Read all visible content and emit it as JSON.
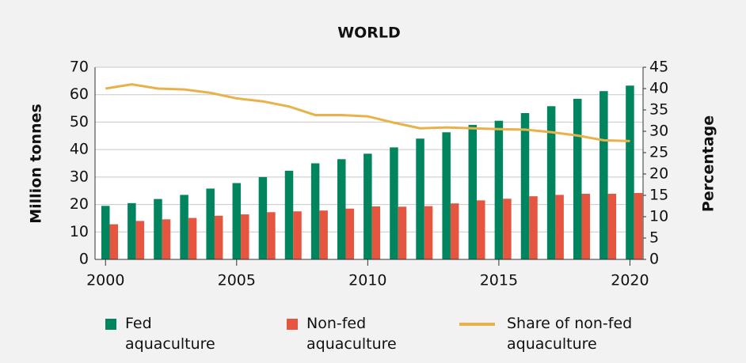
{
  "chart_data": {
    "type": "bar",
    "title": "WORLD",
    "y_label": "Million tonnes",
    "y2_label": "Percentage",
    "x": [
      2000,
      2001,
      2002,
      2003,
      2004,
      2005,
      2006,
      2007,
      2008,
      2009,
      2010,
      2011,
      2012,
      2013,
      2014,
      2015,
      2016,
      2017,
      2018,
      2019,
      2020
    ],
    "xlim": [
      1999.6,
      2020.5
    ],
    "xticks": [
      2000,
      2005,
      2010,
      2015,
      2020
    ],
    "ylim": [
      0,
      70
    ],
    "yticks": [
      0,
      10,
      20,
      30,
      40,
      50,
      60,
      70
    ],
    "y2lim": [
      0,
      45
    ],
    "y2ticks": [
      0,
      5,
      10,
      15,
      20,
      25,
      30,
      35,
      40,
      45
    ],
    "grid": true,
    "legend": "bottom",
    "series": [
      {
        "name": "Fed aquaculture",
        "type": "bar",
        "color": "#00855f",
        "values": [
          19.5,
          20.5,
          22,
          23.5,
          25.8,
          27.8,
          30,
          32.3,
          35,
          36.5,
          38.5,
          40.8,
          44,
          46.3,
          49,
          50.5,
          53.3,
          55.8,
          58.5,
          61.3,
          63.3
        ]
      },
      {
        "name": "Non-fed aquaculture",
        "type": "bar",
        "color": "#e5553f",
        "values": [
          12.8,
          14,
          14.6,
          15.1,
          15.9,
          16.4,
          17.2,
          17.5,
          17.8,
          18.5,
          19.3,
          19.2,
          19.4,
          20.4,
          21.5,
          22.1,
          23,
          23.5,
          23.9,
          23.9,
          24.2
        ]
      },
      {
        "name": "Share of non-fed aquaculture",
        "type": "line",
        "axis": "y2",
        "color": "#e8b24a",
        "values": [
          40,
          41,
          40,
          39.8,
          39,
          37.7,
          37,
          35.8,
          33.8,
          33.8,
          33.5,
          32,
          30.7,
          30.9,
          30.7,
          30.5,
          30.4,
          29.8,
          29,
          27.9,
          27.7
        ]
      }
    ]
  }
}
